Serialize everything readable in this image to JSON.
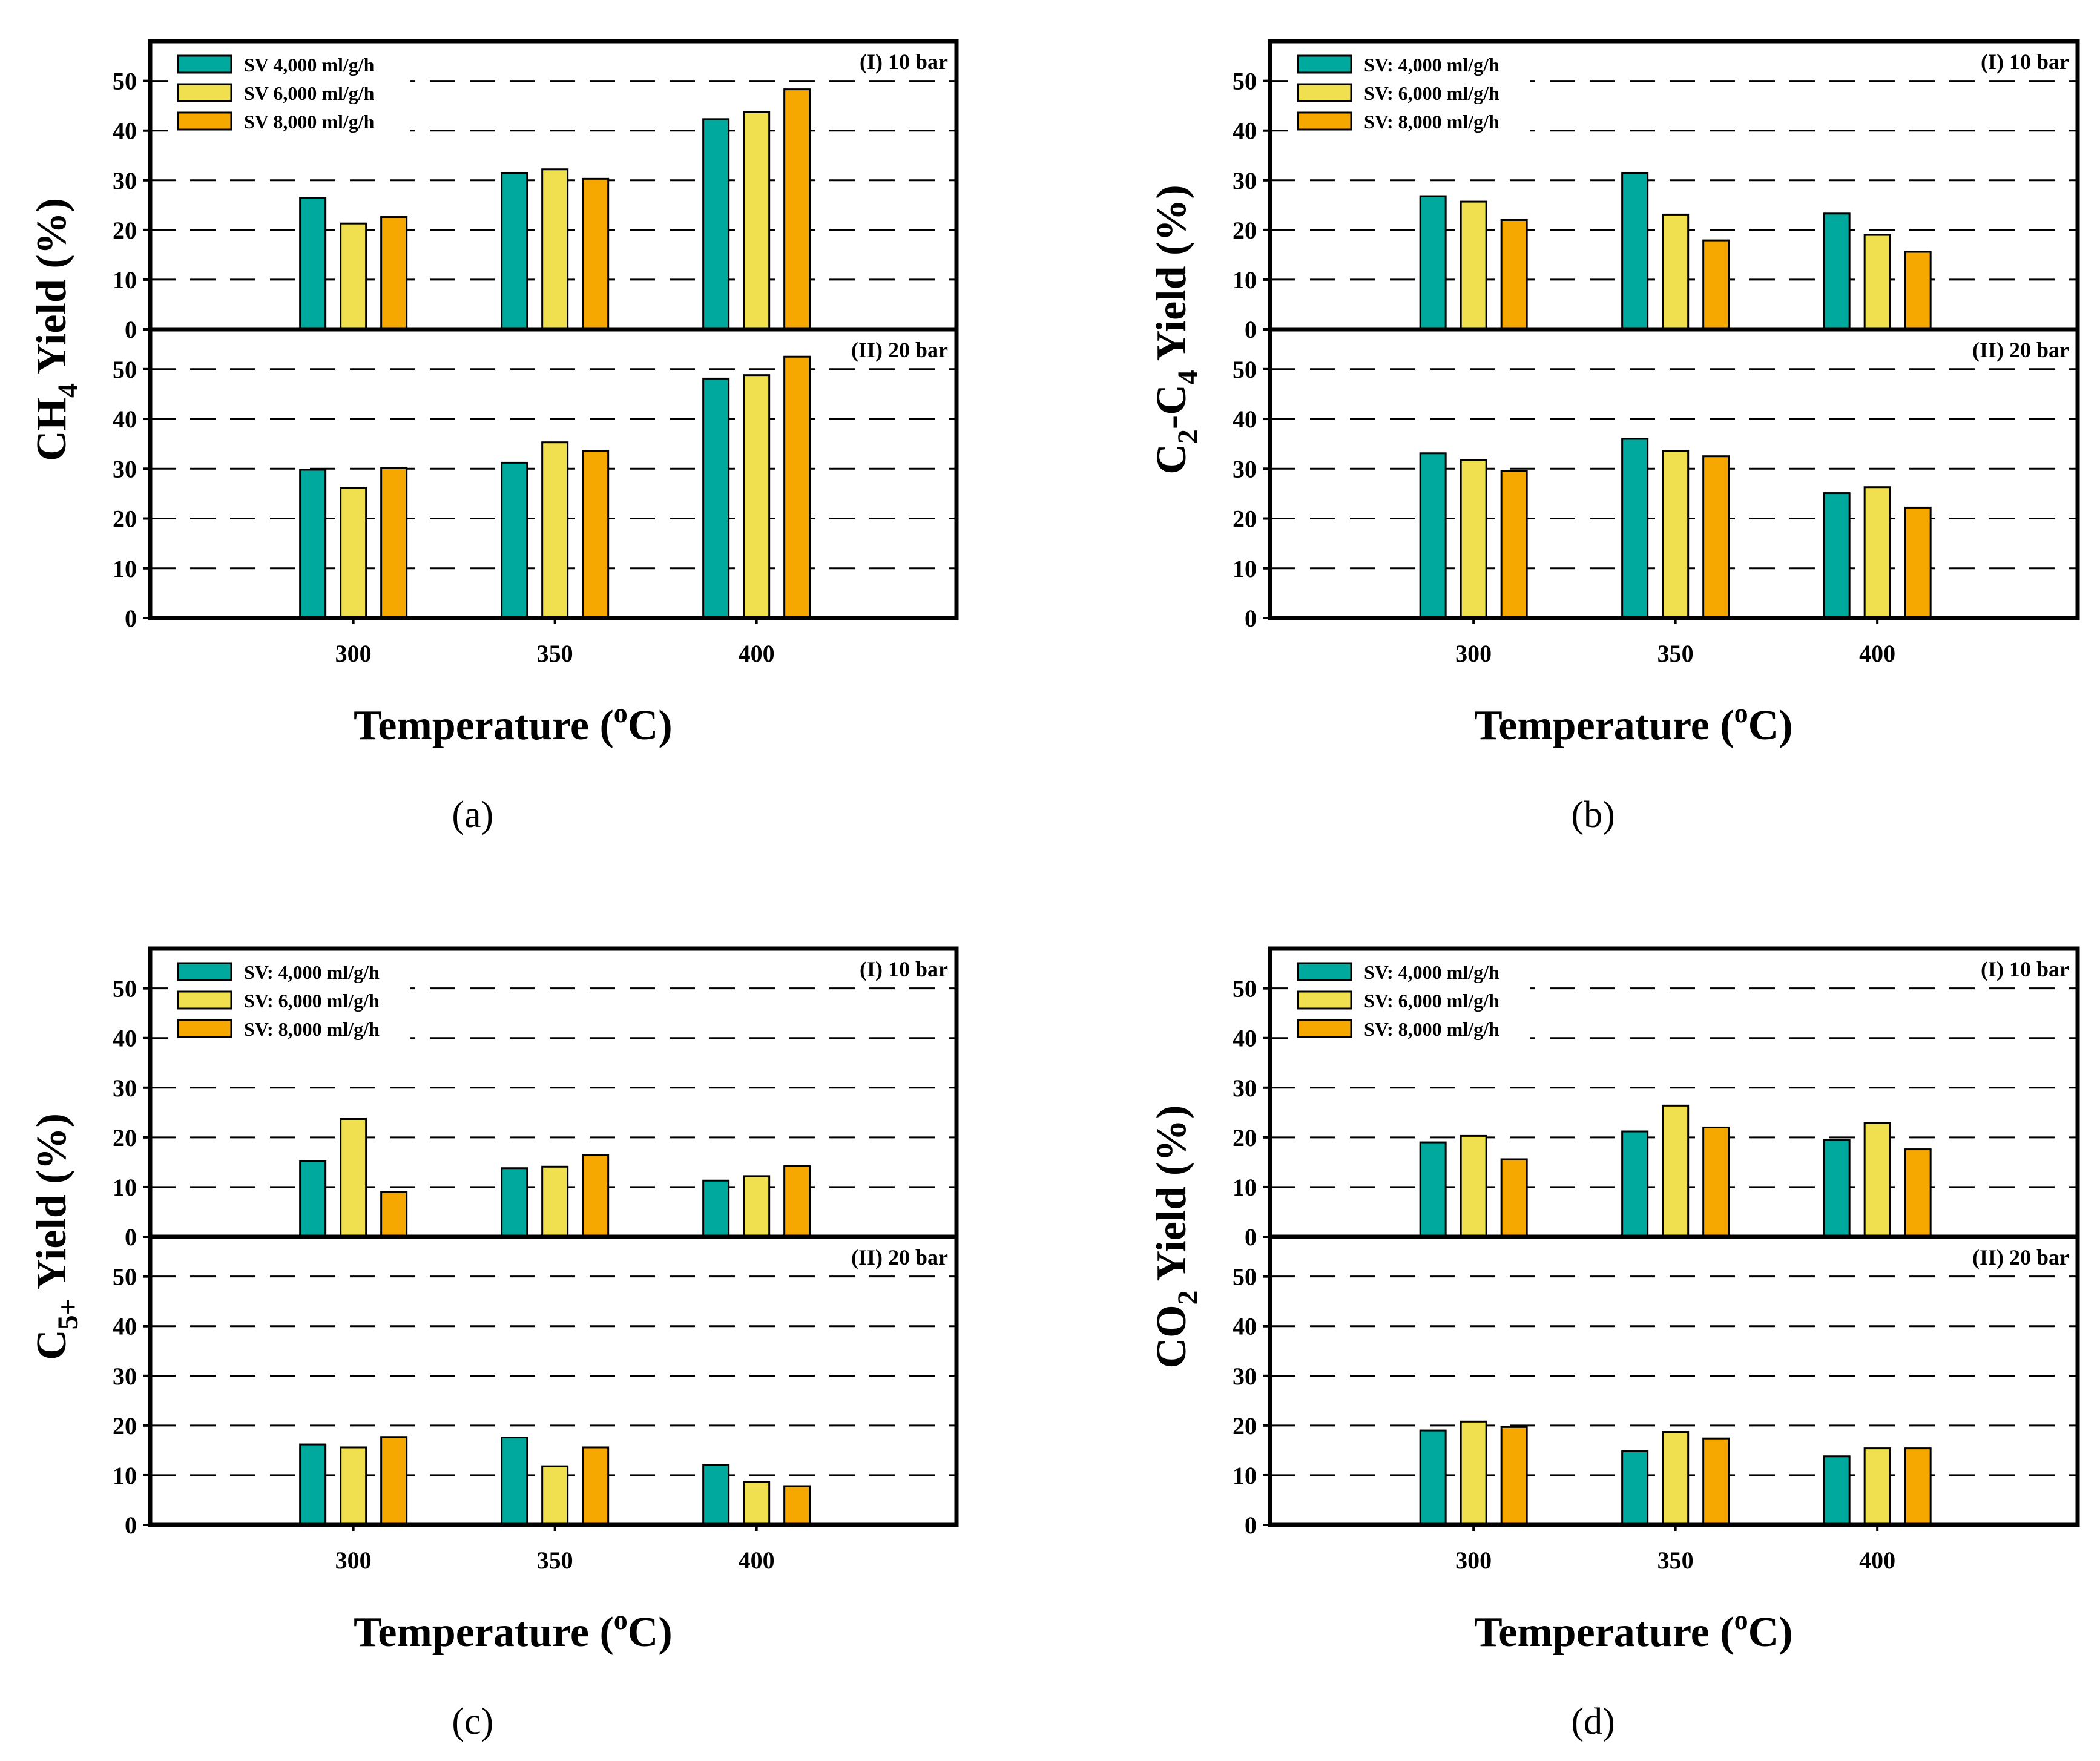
{
  "colors": {
    "sv4000": "#00a99d",
    "sv6000": "#f0e050",
    "sv8000": "#f7a800"
  },
  "chart_data": [
    {
      "type": "bar",
      "caption": "(a)",
      "ylabel_main": "CH",
      "ylabel_sub": "4",
      "ylabel_rest": " Yield (%)",
      "xlabel": "Temperature (",
      "xlabel_sup": "o",
      "xlabel_end": "C)",
      "categories": [
        "300",
        "350",
        "400"
      ],
      "yticks": [
        "0",
        "10",
        "20",
        "30",
        "40",
        "50"
      ],
      "ylim": [
        0,
        58
      ],
      "legend": [
        "SV 4,000 ml/g/h",
        "SV 6,000 ml/g/h",
        "SV 8,000 ml/g/h"
      ],
      "panels": [
        {
          "label": "(I) 10 bar",
          "series": [
            {
              "name": "SV 4,000 ml/g/h",
              "values": [
                26.5,
                31.5,
                42.3
              ]
            },
            {
              "name": "SV 6,000 ml/g/h",
              "values": [
                21.3,
                32.2,
                43.7
              ]
            },
            {
              "name": "SV 8,000 ml/g/h",
              "values": [
                22.6,
                30.3,
                48.3
              ]
            }
          ]
        },
        {
          "label": "(II) 20 bar",
          "series": [
            {
              "name": "SV 4,000 ml/g/h",
              "values": [
                29.8,
                31.2,
                48.1
              ]
            },
            {
              "name": "SV 6,000 ml/g/h",
              "values": [
                26.2,
                35.3,
                48.8
              ]
            },
            {
              "name": "SV 8,000 ml/g/h",
              "values": [
                30.1,
                33.6,
                52.5
              ]
            }
          ]
        }
      ]
    },
    {
      "type": "bar",
      "caption": "(b)",
      "ylabel_main": "C",
      "ylabel_sub": "2",
      "ylabel_rest": "-C",
      "ylabel_sub2": "4",
      "ylabel_end": " Yield (%)",
      "xlabel": "Temperature (",
      "xlabel_sup": "o",
      "xlabel_end": "C)",
      "categories": [
        "300",
        "350",
        "400"
      ],
      "yticks": [
        "0",
        "10",
        "20",
        "30",
        "40",
        "50"
      ],
      "ylim": [
        0,
        58
      ],
      "legend": [
        "SV: 4,000 ml/g/h",
        "SV: 6,000 ml/g/h",
        "SV: 8,000 ml/g/h"
      ],
      "panels": [
        {
          "label": "(I) 10 bar",
          "series": [
            {
              "name": "SV: 4,000 ml/g/h",
              "values": [
                26.8,
                31.5,
                23.3
              ]
            },
            {
              "name": "SV: 6,000 ml/g/h",
              "values": [
                25.7,
                23.1,
                19.0
              ]
            },
            {
              "name": "SV: 8,000 ml/g/h",
              "values": [
                22.0,
                17.9,
                15.6
              ]
            }
          ]
        },
        {
          "label": "(II) 20 bar",
          "series": [
            {
              "name": "SV: 4,000 ml/g/h",
              "values": [
                33.1,
                36.0,
                25.1
              ]
            },
            {
              "name": "SV: 6,000 ml/g/h",
              "values": [
                31.7,
                33.6,
                26.3
              ]
            },
            {
              "name": "SV: 8,000 ml/g/h",
              "values": [
                29.6,
                32.5,
                22.2
              ]
            }
          ]
        }
      ]
    },
    {
      "type": "bar",
      "caption": "(c)",
      "ylabel_main": "C",
      "ylabel_sub": "5+",
      "ylabel_rest": " Yield (%)",
      "xlabel": "Temperature (",
      "xlabel_sup": "o",
      "xlabel_end": "C)",
      "categories": [
        "300",
        "350",
        "400"
      ],
      "yticks": [
        "0",
        "10",
        "20",
        "30",
        "40",
        "50"
      ],
      "ylim": [
        0,
        58
      ],
      "legend": [
        "SV: 4,000 ml/g/h",
        "SV: 6,000 ml/g/h",
        "SV: 8,000 ml/g/h"
      ],
      "panels": [
        {
          "label": "(I) 10 bar",
          "series": [
            {
              "name": "SV: 4,000 ml/g/h",
              "values": [
                15.2,
                13.8,
                11.3
              ]
            },
            {
              "name": "SV: 6,000 ml/g/h",
              "values": [
                23.7,
                14.1,
                12.2
              ]
            },
            {
              "name": "SV: 8,000 ml/g/h",
              "values": [
                9.0,
                16.5,
                14.2
              ]
            }
          ]
        },
        {
          "label": "(II) 20 bar",
          "series": [
            {
              "name": "SV: 4,000 ml/g/h",
              "values": [
                16.2,
                17.6,
                12.1
              ]
            },
            {
              "name": "SV: 6,000 ml/g/h",
              "values": [
                15.6,
                11.8,
                8.6
              ]
            },
            {
              "name": "SV: 8,000 ml/g/h",
              "values": [
                17.7,
                15.6,
                7.8
              ]
            }
          ]
        }
      ]
    },
    {
      "type": "bar",
      "caption": "(d)",
      "ylabel_main": "CO",
      "ylabel_sub": "2",
      "ylabel_rest": " Yield (%)",
      "xlabel": "Temperature (",
      "xlabel_sup": "o",
      "xlabel_end": "C)",
      "categories": [
        "300",
        "350",
        "400"
      ],
      "yticks": [
        "0",
        "10",
        "20",
        "30",
        "40",
        "50"
      ],
      "ylim": [
        0,
        58
      ],
      "legend": [
        "SV: 4,000 ml/g/h",
        "SV: 6,000 ml/g/h",
        "SV: 8,000 ml/g/h"
      ],
      "panels": [
        {
          "label": "(I) 10 bar",
          "series": [
            {
              "name": "SV: 4,000 ml/g/h",
              "values": [
                19.0,
                21.2,
                19.5
              ]
            },
            {
              "name": "SV: 6,000 ml/g/h",
              "values": [
                20.3,
                26.4,
                22.9
              ]
            },
            {
              "name": "SV: 8,000 ml/g/h",
              "values": [
                15.6,
                22.0,
                17.6
              ]
            }
          ]
        },
        {
          "label": "(II) 20 bar",
          "series": [
            {
              "name": "SV: 4,000 ml/g/h",
              "values": [
                19.0,
                14.8,
                13.8
              ]
            },
            {
              "name": "SV: 6,000 ml/g/h",
              "values": [
                20.8,
                18.7,
                15.4
              ]
            },
            {
              "name": "SV: 8,000 ml/g/h",
              "values": [
                19.7,
                17.4,
                15.4
              ]
            }
          ]
        }
      ]
    }
  ]
}
